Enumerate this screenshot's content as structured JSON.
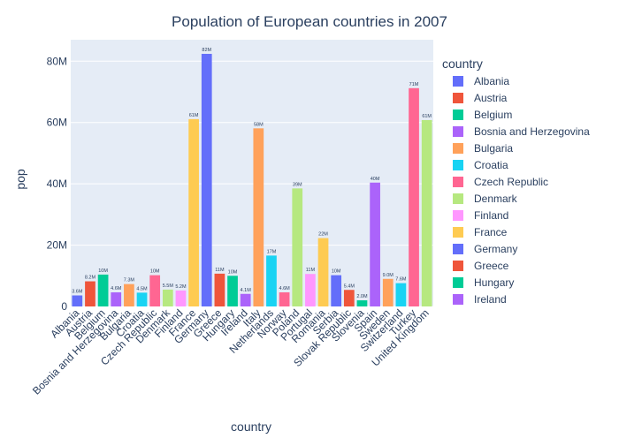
{
  "chart_data": {
    "type": "bar",
    "title": "Population of European countries in 2007",
    "xlabel": "country",
    "ylabel": "pop",
    "ylim": [
      0,
      87000000
    ],
    "yticks": [
      0,
      20000000,
      40000000,
      60000000,
      80000000
    ],
    "ytick_labels": [
      "0",
      "20M",
      "40M",
      "60M",
      "80M"
    ],
    "grid": true,
    "legend_title": "country",
    "legend_position": "right",
    "categories": [
      "Albania",
      "Austria",
      "Belgium",
      "Bosnia and Herzegovina",
      "Bulgaria",
      "Croatia",
      "Czech Republic",
      "Denmark",
      "Finland",
      "France",
      "Germany",
      "Greece",
      "Hungary",
      "Ireland",
      "Italy",
      "Netherlands",
      "Norway",
      "Poland",
      "Portugal",
      "Romania",
      "Serbia",
      "Slovak Republic",
      "Slovenia",
      "Spain",
      "Sweden",
      "Switzerland",
      "Turkey",
      "United Kingdom"
    ],
    "values": [
      3600000,
      8200000,
      10400000,
      4600000,
      7300000,
      4500000,
      10200000,
      5500000,
      5200000,
      61100000,
      82400000,
      10700000,
      10000000,
      4100000,
      58100000,
      16600000,
      4600000,
      38500000,
      10600000,
      22300000,
      10200000,
      5400000,
      2000000,
      40400000,
      9000000,
      7600000,
      71200000,
      60800000
    ],
    "data_labels": [
      "3.6M",
      "8.2M",
      "10M",
      "4.6M",
      "7.3M",
      "4.5M",
      "10M",
      "5.5M",
      "5.2M",
      "61M",
      "82M",
      "11M",
      "10M",
      "4.1M",
      "58M",
      "17M",
      "4.6M",
      "39M",
      "11M",
      "22M",
      "10M",
      "5.4M",
      "2.0M",
      "40M",
      "9.0M",
      "7.6M",
      "71M",
      "61M"
    ],
    "colors": [
      "#636efa",
      "#EF553B",
      "#00cc96",
      "#ab63fa",
      "#FFA15A",
      "#19d3f3",
      "#FF6692",
      "#B6E880",
      "#FF97FF",
      "#FECB52"
    ],
    "legend_visible": [
      "Albania",
      "Austria",
      "Belgium",
      "Bosnia and Herzegovina",
      "Bulgaria",
      "Croatia",
      "Czech Republic",
      "Denmark",
      "Finland",
      "France",
      "Germany",
      "Greece",
      "Hungary",
      "Ireland"
    ]
  }
}
